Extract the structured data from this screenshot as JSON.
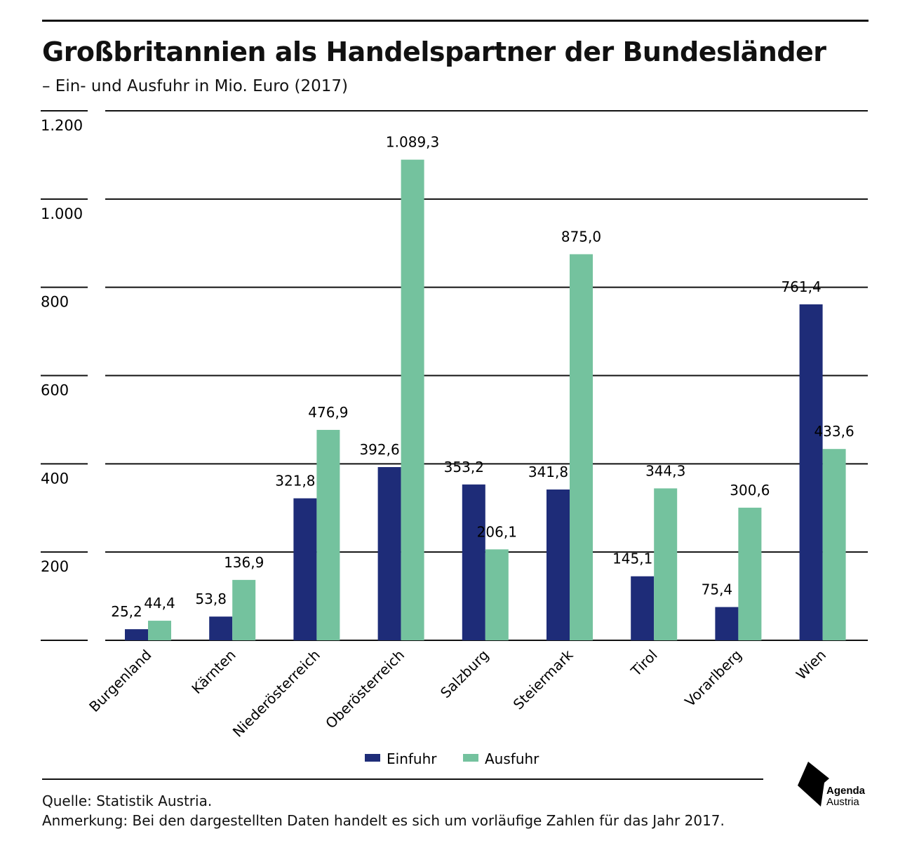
{
  "title": "Großbritannien als Handelspartner der Bundesländer",
  "subtitle": "– Ein- und Ausfuhr in Mio. Euro (2017)",
  "footer": {
    "source": "Quelle: Statistik Austria.",
    "note": "Anmerkung: Bei den dargestellten Daten handelt es sich um vorläufige Zahlen für das Jahr 2017."
  },
  "logo": {
    "line1": "Agenda",
    "line2": "Austria"
  },
  "chart_data": {
    "type": "bar",
    "title": "Großbritannien als Handelspartner der Bundesländer",
    "subtitle": "– Ein- und Ausfuhr in Mio. Euro (2017)",
    "categories": [
      "Burgenland",
      "Kärnten",
      "Niederösterreich",
      "Oberösterreich",
      "Salzburg",
      "Steiermark",
      "Tirol",
      "Vorarlberg",
      "Wien"
    ],
    "series": [
      {
        "name": "Einfuhr",
        "color": "#1e2c78",
        "values": [
          25.2,
          53.8,
          321.8,
          392.6,
          353.2,
          341.8,
          145.1,
          75.4,
          761.4
        ],
        "labels": [
          "25,2",
          "53,8",
          "321,8",
          "392,6",
          "353,2",
          "341,8",
          "145,1",
          "75,4",
          "761,4"
        ]
      },
      {
        "name": "Ausfuhr",
        "color": "#74c29e",
        "values": [
          44.4,
          136.9,
          476.9,
          1089.3,
          206.1,
          875.0,
          344.3,
          300.6,
          433.6
        ],
        "labels": [
          "44,4",
          "136,9",
          "476,9",
          "1.089,3",
          "206,1",
          "875,0",
          "344,3",
          "300,6",
          "433,6"
        ]
      }
    ],
    "ylim": [
      0,
      1200
    ],
    "yticks": [
      0,
      200,
      400,
      600,
      800,
      1000,
      1200
    ],
    "ytick_labels": [
      "",
      "200",
      "400",
      "600",
      "800",
      "1.000",
      "1.200"
    ],
    "grid": true,
    "legend": "bottom-center",
    "xlabel": "",
    "ylabel": ""
  }
}
